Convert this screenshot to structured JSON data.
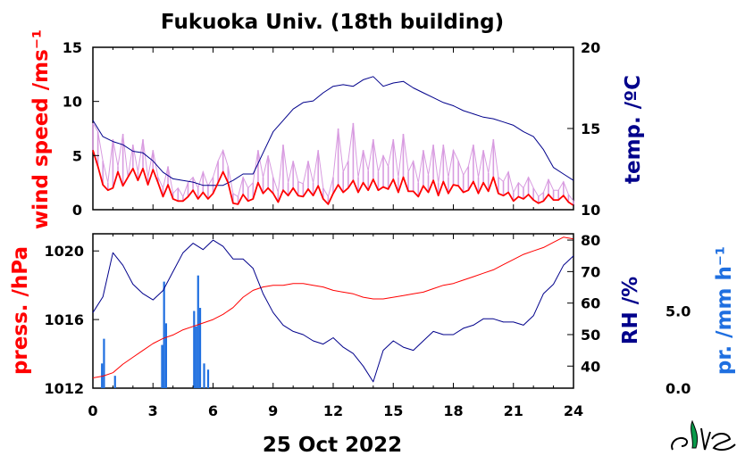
{
  "chart_data": [
    {
      "type": "line",
      "title": "Fukuoka Univ. (18th building)",
      "xlabel": "",
      "xlim": [
        0,
        24
      ],
      "xticks": [
        0,
        3,
        6,
        9,
        12,
        15,
        18,
        21,
        24
      ],
      "y_left": {
        "label": "wind speed /ms⁻¹",
        "lim": [
          0,
          15
        ],
        "ticks": [
          0,
          5,
          10,
          15
        ],
        "color": "#ff0000"
      },
      "y_right": {
        "label": "temp. /ºC",
        "lim": [
          10,
          20
        ],
        "ticks": [
          10,
          15,
          20
        ],
        "color": "#00008b"
      },
      "series": [
        {
          "name": "",
          "axis": "y_left",
          "color": "#ff0000",
          "kind": "mean",
          "x": [
            0,
            0.25,
            0.5,
            0.75,
            1,
            1.25,
            1.5,
            1.75,
            2,
            2.25,
            2.5,
            2.75,
            3,
            3.25,
            3.5,
            3.75,
            4,
            4.25,
            4.5,
            4.75,
            5,
            5.25,
            5.5,
            5.75,
            6,
            6.25,
            6.5,
            6.75,
            7,
            7.25,
            7.5,
            7.75,
            8,
            8.25,
            8.5,
            8.75,
            9,
            9.25,
            9.5,
            9.75,
            10,
            10.25,
            10.5,
            10.75,
            11,
            11.25,
            11.5,
            11.75,
            12,
            12.25,
            12.5,
            12.75,
            13,
            13.25,
            13.5,
            13.75,
            14,
            14.25,
            14.5,
            14.75,
            15,
            15.25,
            15.5,
            15.75,
            16,
            16.25,
            16.5,
            16.75,
            17,
            17.25,
            17.5,
            17.75,
            18,
            18.25,
            18.5,
            18.75,
            19,
            19.25,
            19.5,
            19.75,
            20,
            20.25,
            20.5,
            20.75,
            21,
            21.25,
            21.5,
            21.75,
            22,
            22.25,
            22.5,
            22.75,
            23,
            23.25,
            23.5,
            23.75,
            24
          ],
          "y": [
            5.5,
            4.0,
            2.3,
            1.8,
            2.0,
            3.5,
            2.2,
            3.0,
            3.8,
            2.7,
            3.8,
            2.3,
            3.7,
            2.5,
            1.2,
            2.3,
            1.0,
            0.8,
            0.8,
            1.2,
            1.8,
            1.0,
            1.6,
            1.0,
            1.5,
            2.5,
            3.5,
            2.5,
            0.6,
            0.5,
            1.4,
            0.8,
            1.0,
            2.5,
            1.5,
            2.0,
            1.5,
            0.7,
            1.8,
            1.3,
            2.0,
            1.3,
            1.2,
            1.9,
            1.3,
            2.2,
            1.0,
            0.5,
            1.5,
            2.3,
            1.6,
            2.0,
            2.7,
            1.6,
            2.5,
            1.8,
            2.8,
            1.8,
            2.1,
            1.9,
            2.8,
            1.6,
            3.0,
            1.7,
            1.7,
            1.2,
            2.2,
            1.6,
            2.7,
            1.3,
            2.6,
            1.5,
            2.3,
            2.2,
            1.6,
            1.8,
            2.6,
            1.5,
            2.5,
            1.7,
            3.0,
            1.5,
            1.3,
            1.6,
            0.8,
            1.2,
            1.0,
            1.4,
            0.9,
            0.6,
            0.8,
            1.4,
            0.9,
            0.9,
            1.3,
            0.7,
            0.4
          ]
        },
        {
          "name": "",
          "axis": "y_left",
          "color": "#d89be0",
          "kind": "gust",
          "x": [
            0,
            0.25,
            0.5,
            0.75,
            1,
            1.25,
            1.5,
            1.75,
            2,
            2.25,
            2.5,
            2.75,
            3,
            3.25,
            3.5,
            3.75,
            4,
            4.25,
            4.5,
            4.75,
            5,
            5.25,
            5.5,
            5.75,
            6,
            6.25,
            6.5,
            6.75,
            7,
            7.25,
            7.5,
            7.75,
            8,
            8.25,
            8.5,
            8.75,
            9,
            9.25,
            9.5,
            9.75,
            10,
            10.25,
            10.5,
            10.75,
            11,
            11.25,
            11.5,
            11.75,
            12,
            12.25,
            12.5,
            12.75,
            13,
            13.25,
            13.5,
            13.75,
            14,
            14.25,
            14.5,
            14.75,
            15,
            15.25,
            15.5,
            15.75,
            16,
            16.25,
            16.5,
            16.75,
            17,
            17.25,
            17.5,
            17.75,
            18,
            18.25,
            18.5,
            18.75,
            19,
            19.25,
            19.5,
            19.75,
            20,
            20.25,
            20.5,
            20.75,
            21,
            21.25,
            21.5,
            21.75,
            22,
            22.25,
            22.5,
            22.75,
            23,
            23.25,
            23.5,
            23.75,
            24
          ],
          "y": [
            8.0,
            7.2,
            4.5,
            2.5,
            6.5,
            4.0,
            7.0,
            3.0,
            6.0,
            3.5,
            6.5,
            3.0,
            5.5,
            3.0,
            2.0,
            4.0,
            1.5,
            2.0,
            1.2,
            2.5,
            3.0,
            2.0,
            3.5,
            2.2,
            3.0,
            4.5,
            5.5,
            4.0,
            1.5,
            1.2,
            3.0,
            2.0,
            2.5,
            5.5,
            3.0,
            5.0,
            3.0,
            1.6,
            6.0,
            2.5,
            4.5,
            2.6,
            2.4,
            4.5,
            2.5,
            5.5,
            2.0,
            1.2,
            3.0,
            7.5,
            3.5,
            4.5,
            8.0,
            3.0,
            5.5,
            3.6,
            6.5,
            3.5,
            5.0,
            4.0,
            6.5,
            3.0,
            7.0,
            3.5,
            4.5,
            2.5,
            5.5,
            3.2,
            6.0,
            2.5,
            6.0,
            3.0,
            5.5,
            4.5,
            3.2,
            4.0,
            6.0,
            3.0,
            5.5,
            3.4,
            6.5,
            3.0,
            2.6,
            3.5,
            1.6,
            2.5,
            2.0,
            3.0,
            2.0,
            1.2,
            1.6,
            2.8,
            1.8,
            1.8,
            2.6,
            1.4,
            0.8
          ]
        },
        {
          "name": "",
          "axis": "y_right",
          "color": "#00008b",
          "kind": "temp",
          "x": [
            0,
            0.5,
            1,
            1.5,
            2,
            2.5,
            3,
            3.5,
            4,
            4.5,
            5,
            5.5,
            6,
            6.5,
            7,
            7.5,
            8,
            8.5,
            9,
            9.5,
            10,
            10.5,
            11,
            11.5,
            12,
            12.5,
            13,
            13.5,
            14,
            14.5,
            15,
            15.5,
            16,
            16.5,
            17,
            17.5,
            18,
            18.5,
            19,
            19.5,
            20,
            20.5,
            21,
            21.5,
            22,
            22.5,
            23,
            23.5,
            24
          ],
          "y": [
            15.5,
            14.5,
            14.2,
            14.0,
            13.6,
            13.5,
            13.0,
            12.3,
            11.9,
            11.8,
            11.7,
            11.5,
            11.5,
            11.5,
            11.8,
            12.2,
            12.2,
            13.5,
            14.8,
            15.5,
            16.2,
            16.6,
            16.7,
            17.2,
            17.6,
            17.7,
            17.6,
            18.0,
            18.2,
            17.6,
            17.8,
            17.9,
            17.5,
            17.2,
            16.9,
            16.6,
            16.4,
            16.1,
            15.9,
            15.7,
            15.6,
            15.4,
            15.2,
            14.8,
            14.5,
            13.7,
            12.6,
            12.2,
            11.8
          ]
        }
      ]
    },
    {
      "type": "line",
      "xlabel": "25 Oct 2022",
      "xlim": [
        0,
        24
      ],
      "xticks": [
        0,
        3,
        6,
        9,
        12,
        15,
        18,
        21,
        24
      ],
      "y_left": {
        "label": "press. /hPa",
        "lim": [
          1012,
          1021
        ],
        "ticks": [
          1012,
          1016,
          1020
        ],
        "color": "#ff0000"
      },
      "y_right": {
        "label": "RH /%",
        "lim": [
          33,
          82
        ],
        "ticks": [
          40,
          50,
          60,
          70,
          80
        ],
        "color": "#00008b"
      },
      "y_right2": {
        "label": "pr. /mm h⁻¹",
        "lim": [
          0,
          10
        ],
        "ticks_text": [
          "0.0",
          "5.0"
        ],
        "tick_values": [
          0,
          5
        ],
        "color": "#1f6fe0"
      },
      "series": [
        {
          "name": "",
          "axis": "y_left",
          "color": "#ff0000",
          "kind": "pressure",
          "x": [
            0,
            0.5,
            1,
            1.5,
            2,
            2.5,
            3,
            3.5,
            4,
            4.5,
            5,
            5.5,
            6,
            6.5,
            7,
            7.5,
            8,
            8.5,
            9,
            9.5,
            10,
            10.5,
            11,
            11.5,
            12,
            12.5,
            13,
            13.5,
            14,
            14.5,
            15,
            15.5,
            16,
            16.5,
            17,
            17.5,
            18,
            18.5,
            19,
            19.5,
            20,
            20.5,
            21,
            21.5,
            22,
            22.5,
            23,
            23.5,
            24
          ],
          "y": [
            1012.6,
            1012.7,
            1012.9,
            1013.4,
            1013.8,
            1014.2,
            1014.6,
            1014.9,
            1015.1,
            1015.4,
            1015.6,
            1015.8,
            1016.0,
            1016.3,
            1016.7,
            1017.3,
            1017.7,
            1017.9,
            1018.0,
            1018.0,
            1018.1,
            1018.1,
            1018.0,
            1017.9,
            1017.7,
            1017.6,
            1017.5,
            1017.3,
            1017.2,
            1017.2,
            1017.3,
            1017.4,
            1017.5,
            1017.6,
            1017.8,
            1018.0,
            1018.1,
            1018.3,
            1018.5,
            1018.7,
            1018.9,
            1019.2,
            1019.5,
            1019.8,
            1020.0,
            1020.2,
            1020.5,
            1020.8,
            1020.7
          ]
        },
        {
          "name": "",
          "axis": "y_right",
          "color": "#00008b",
          "kind": "rh",
          "x": [
            0,
            0.5,
            1,
            1.5,
            2,
            2.5,
            3,
            3.5,
            4,
            4.5,
            5,
            5.5,
            6,
            6.5,
            7,
            7.5,
            8,
            8.5,
            9,
            9.5,
            10,
            10.5,
            11,
            11.5,
            12,
            12.5,
            13,
            13.5,
            14,
            14.5,
            15,
            15.5,
            16,
            16.5,
            17,
            17.5,
            18,
            18.5,
            19,
            19.5,
            20,
            20.5,
            21,
            21.5,
            22,
            22.5,
            23,
            23.5,
            24
          ],
          "y": [
            57,
            62,
            76,
            72,
            66,
            63,
            61,
            64,
            70,
            76,
            79,
            77,
            80,
            78,
            74,
            74,
            71,
            63,
            57,
            53,
            51,
            50,
            48,
            47,
            49,
            46,
            44,
            40,
            35,
            45,
            48,
            46,
            45,
            48,
            51,
            50,
            50,
            52,
            53,
            55,
            55,
            54,
            54,
            53,
            56,
            63,
            66,
            72,
            75
          ]
        },
        {
          "name": "",
          "axis": "y_right2",
          "color": "#1f6fe0",
          "kind": "precip",
          "x": [
            0.45,
            0.55,
            1.1,
            3.45,
            3.55,
            3.65,
            5.05,
            5.15,
            5.25,
            5.35,
            5.55,
            5.75
          ],
          "y": [
            1.6,
            3.2,
            0.8,
            2.8,
            6.9,
            4.2,
            5.0,
            4.0,
            7.3,
            5.2,
            1.6,
            1.2
          ]
        }
      ]
    }
  ]
}
